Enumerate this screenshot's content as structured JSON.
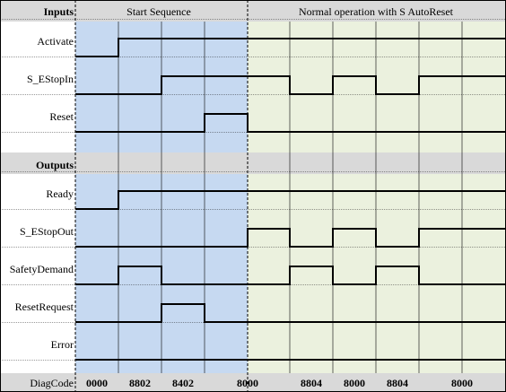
{
  "header": {
    "inputs_label": "Inputs",
    "outputs_label": "Outputs",
    "start_sequence_label": "Start Sequence",
    "normal_operation_label": "Normal operation with S  AutoReset"
  },
  "signals": {
    "inputs": [
      {
        "name": "Activate",
        "levels": [
          0,
          1,
          1,
          1,
          1,
          1,
          1,
          1,
          1
        ]
      },
      {
        "name": "S_EStopIn",
        "levels": [
          0,
          0,
          1,
          1,
          1,
          0,
          1,
          0,
          1
        ]
      },
      {
        "name": "Reset",
        "levels": [
          0,
          0,
          0,
          1,
          0,
          0,
          0,
          0,
          0
        ]
      }
    ],
    "outputs": [
      {
        "name": "Ready",
        "levels": [
          0,
          1,
          1,
          1,
          1,
          1,
          1,
          1,
          1
        ]
      },
      {
        "name": "S_EStopOut",
        "levels": [
          0,
          0,
          0,
          0,
          1,
          0,
          1,
          0,
          1
        ]
      },
      {
        "name": "SafetyDemand",
        "levels": [
          0,
          1,
          0,
          0,
          0,
          1,
          0,
          1,
          0
        ]
      },
      {
        "name": "ResetRequest",
        "levels": [
          0,
          0,
          1,
          0,
          0,
          0,
          0,
          0,
          0
        ]
      },
      {
        "name": "Error",
        "levels": [
          0,
          0,
          0,
          0,
          0,
          0,
          0,
          0,
          0
        ]
      }
    ]
  },
  "diag_code": {
    "label": "DiagCode",
    "values": [
      "0000",
      "8802",
      "8402",
      "8000",
      "8804",
      "8000",
      "8804",
      "8000"
    ]
  },
  "colors": {
    "start_shade": "#c6d9f1",
    "normal_shade": "#ebf1de",
    "header_band": "#d9d9d9",
    "signal_line": "#000000"
  }
}
